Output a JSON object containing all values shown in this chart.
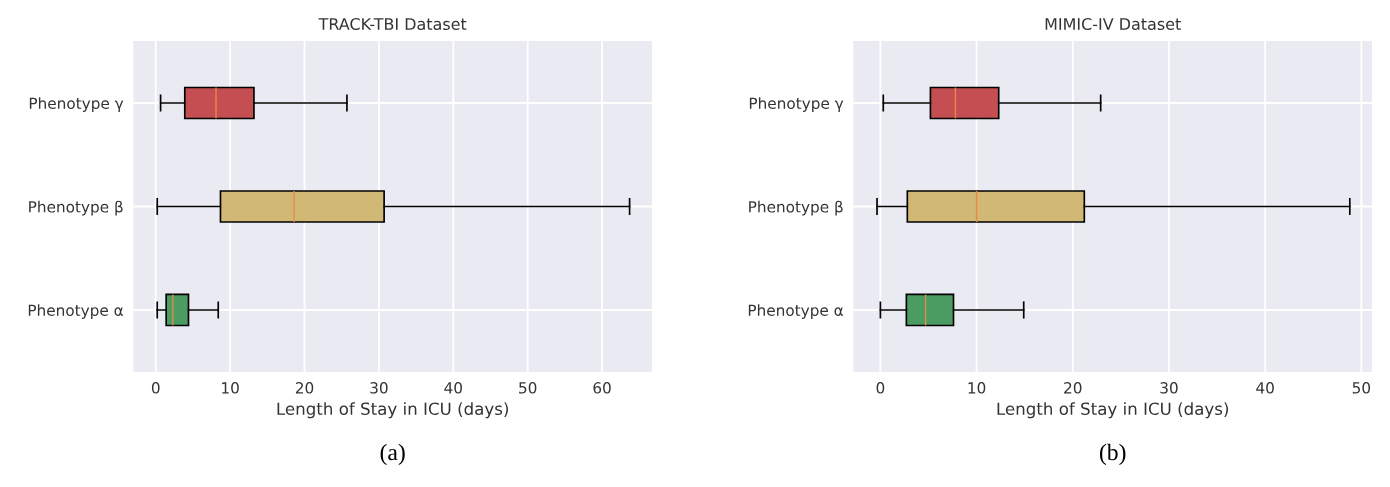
{
  "chart_data": [
    {
      "type": "box",
      "title": "TRACK-TBI Dataset",
      "xlabel": "Length of Stay in ICU (days)",
      "orientation": "horizontal",
      "categories": [
        "Phenotype γ",
        "Phenotype β",
        "Phenotype α"
      ],
      "colors": [
        "#c44e52",
        "#d1b874",
        "#4a9c62"
      ],
      "boxes": [
        {
          "low": 0.65,
          "q1": 3.9,
          "median": 8.1,
          "q3": 13.2,
          "high": 25.7
        },
        {
          "low": 0.2,
          "q1": 8.7,
          "median": 18.6,
          "q3": 30.7,
          "high": 63.7
        },
        {
          "low": 0.2,
          "q1": 1.4,
          "median": 2.3,
          "q3": 4.4,
          "high": 8.4
        }
      ],
      "xlim": [
        -3.0,
        66.7
      ],
      "xticks": [
        0,
        10,
        20,
        30,
        40,
        50,
        60
      ],
      "grid": true,
      "annotations": [
        "(a)"
      ]
    },
    {
      "type": "box",
      "title": "MIMIC-IV Dataset",
      "xlabel": "Length of Stay in ICU (days)",
      "orientation": "horizontal",
      "categories": [
        "Phenotype γ",
        "Phenotype β",
        "Phenotype α"
      ],
      "colors": [
        "#c44e52",
        "#d1b874",
        "#4a9c62"
      ],
      "boxes": [
        {
          "low": 0.3,
          "q1": 5.2,
          "median": 7.8,
          "q3": 12.3,
          "high": 22.9
        },
        {
          "low": -0.35,
          "q1": 2.8,
          "median": 10.0,
          "q3": 21.2,
          "high": 48.8
        },
        {
          "low": 0,
          "q1": 2.7,
          "median": 4.7,
          "q3": 7.6,
          "high": 14.9
        }
      ],
      "xlim": [
        -2.8,
        51.1
      ],
      "xticks": [
        0,
        10,
        20,
        30,
        40,
        50
      ],
      "grid": true,
      "annotations": [
        "(b)"
      ]
    }
  ]
}
